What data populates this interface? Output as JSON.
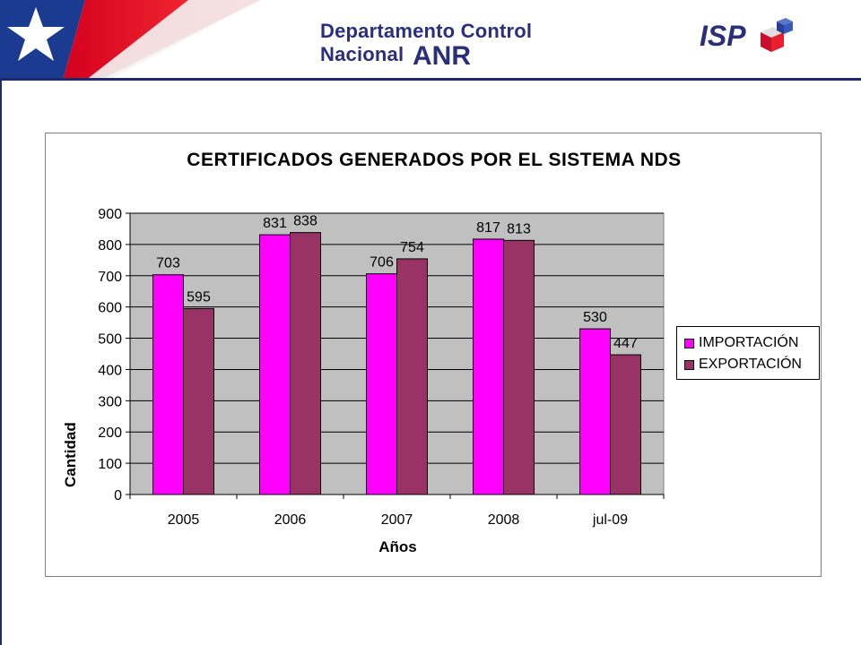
{
  "header": {
    "title": "Departamento  Control Nacional",
    "subtitle": "ANR",
    "logo_text": "ISP",
    "logo_icon": "isp-cube-logo-icon",
    "flag_icon": "chile-flag-icon"
  },
  "colors": {
    "importacion": "#ff00ff",
    "exportacion": "#993366",
    "plot_bg": "#c0c0c0",
    "header_blue": "#1f2a6e"
  },
  "chart_data": {
    "type": "bar",
    "title": "CERTIFICADOS GENERADOS POR EL SISTEMA NDS",
    "xlabel": "Años",
    "ylabel": "Cantidad",
    "categories": [
      "2005",
      "2006",
      "2007",
      "2008",
      "jul-09"
    ],
    "series": [
      {
        "name": "IMPORTACIÓN",
        "values": [
          703,
          831,
          706,
          817,
          530
        ]
      },
      {
        "name": "EXPORTACIÓN",
        "values": [
          595,
          838,
          754,
          813,
          447
        ]
      }
    ],
    "ylim": [
      0,
      900
    ],
    "yticks": [
      0,
      100,
      200,
      300,
      400,
      500,
      600,
      700,
      800,
      900
    ],
    "grid": true,
    "legend": "right"
  }
}
